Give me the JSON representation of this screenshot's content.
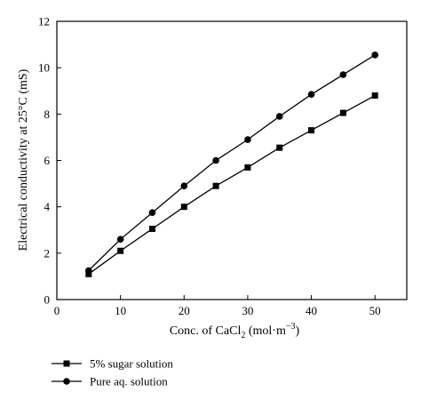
{
  "chart_data": {
    "type": "line",
    "xlabel": "Conc. of CaCl",
    "xlabel_subscript": "2",
    "xlabel_units": " (mol·m",
    "xlabel_units_superscript": "−3",
    "xlabel_units_close": ")",
    "ylabel": "Electrical conductivity at 25°C (mS)",
    "xlim": [
      0,
      55
    ],
    "ylim": [
      0,
      12
    ],
    "xticks": [
      0,
      10,
      20,
      30,
      40,
      50
    ],
    "yticks": [
      0,
      2,
      4,
      6,
      8,
      10,
      12
    ],
    "grid": false,
    "legend_position": "bottom-left, below plot",
    "series": [
      {
        "name": "5% sugar solution",
        "marker": "square",
        "color": "#000000",
        "x": [
          5,
          10,
          15,
          20,
          25,
          30,
          35,
          40,
          45,
          50
        ],
        "y": [
          1.1,
          2.1,
          3.05,
          4.0,
          4.9,
          5.7,
          6.55,
          7.3,
          8.05,
          8.8
        ]
      },
      {
        "name": "Pure aq. solution",
        "marker": "circle",
        "color": "#000000",
        "x": [
          5,
          10,
          15,
          20,
          25,
          30,
          35,
          40,
          45,
          50
        ],
        "y": [
          1.25,
          2.6,
          3.75,
          4.9,
          6.0,
          6.9,
          7.9,
          8.85,
          9.7,
          10.55
        ]
      }
    ]
  }
}
